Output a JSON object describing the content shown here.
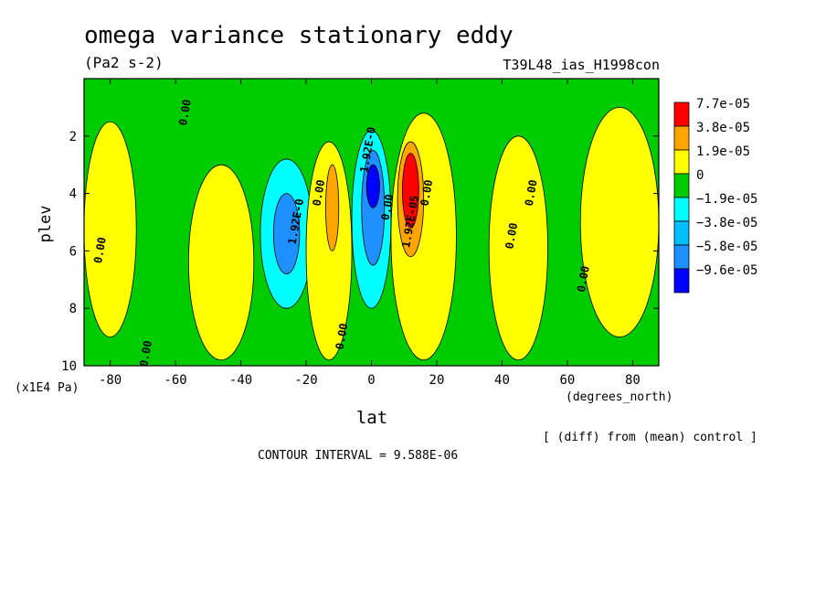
{
  "chart_data": {
    "type": "heatmap",
    "title": "omega variance stationary eddy",
    "units": "(Pa2 s-2)",
    "run_label": "T39L48_ias_H1998con",
    "xlabel": "lat",
    "xunits": "(degrees_north)",
    "ylabel": "plev",
    "yunits": "(x1E4 Pa)",
    "xlim": [
      -88,
      88
    ],
    "ylim": [
      0,
      10
    ],
    "x_ticks": [
      -80,
      -60,
      -40,
      -20,
      0,
      20,
      40,
      60,
      80
    ],
    "x_tick_labels": [
      "-80",
      "-60",
      "-40",
      "-20",
      "0",
      "20",
      "40",
      "60",
      "80"
    ],
    "y_ticks": [
      2,
      4,
      6,
      8,
      10
    ],
    "y_tick_labels": [
      "2",
      "4",
      "6",
      "8",
      "10"
    ],
    "footer_note": "[ (diff) from (mean) control ]",
    "contour_interval": "CONTOUR INTERVAL = 9.588E-06",
    "legend": [
      {
        "label": "7.7e-05",
        "color": "#ff0000"
      },
      {
        "label": "3.8e-05",
        "color": "#ffa500"
      },
      {
        "label": "1.9e-05",
        "color": "#ffff00"
      },
      {
        "label": "0",
        "color": "#00cc00"
      },
      {
        "label": "−1.9e-05",
        "color": "#00ffff"
      },
      {
        "label": "−3.8e-05",
        "color": "#00bfff"
      },
      {
        "label": "−5.8e-05",
        "color": "#1e90ff"
      },
      {
        "label": "−9.6e-05",
        "color": "#0000ff"
      }
    ],
    "colors": {
      "positive_band": "#ffff00",
      "zero_band": "#00cc00",
      "orange": "#ffa500",
      "red": "#ff0000",
      "cyan": "#00ffff",
      "light_blue": "#1e90ff",
      "blue": "#0000ff"
    },
    "regions": [
      {
        "name": "yellow-west-band",
        "color": "#ffff00",
        "lat": [
          -88,
          -72
        ],
        "plev": [
          1.5,
          9.0
        ]
      },
      {
        "name": "yellow-midwest",
        "color": "#ffff00",
        "lat": [
          -56,
          -36
        ],
        "plev": [
          3.0,
          9.8
        ]
      },
      {
        "name": "cyan-sh-low",
        "color": "#00ffff",
        "lat": [
          -34,
          -18
        ],
        "plev": [
          2.8,
          8.0
        ]
      },
      {
        "name": "blue-sh-low",
        "color": "#1e90ff",
        "lat": [
          -30,
          -22
        ],
        "plev": [
          4.0,
          6.8
        ]
      },
      {
        "name": "yellow-eq-south",
        "color": "#ffff00",
        "lat": [
          -20,
          -6
        ],
        "plev": [
          2.2,
          9.8
        ]
      },
      {
        "name": "orange-eq-south",
        "color": "#ffa500",
        "lat": [
          -14,
          -10
        ],
        "plev": [
          3.0,
          6.0
        ]
      },
      {
        "name": "cyan-eq",
        "color": "#00ffff",
        "lat": [
          -6,
          6
        ],
        "plev": [
          1.8,
          8.0
        ]
      },
      {
        "name": "blue-eq",
        "color": "#1e90ff",
        "lat": [
          -3,
          4
        ],
        "plev": [
          2.5,
          6.5
        ]
      },
      {
        "name": "darkblue-eq",
        "color": "#0000ff",
        "lat": [
          -1.5,
          2.5
        ],
        "plev": [
          3.0,
          4.5
        ]
      },
      {
        "name": "yellow-eq-north",
        "color": "#ffff00",
        "lat": [
          6,
          26
        ],
        "plev": [
          1.2,
          9.8
        ]
      },
      {
        "name": "orange-nh",
        "color": "#ffa500",
        "lat": [
          8,
          16
        ],
        "plev": [
          2.2,
          6.2
        ]
      },
      {
        "name": "red-nh",
        "color": "#ff0000",
        "lat": [
          9.5,
          14.5
        ],
        "plev": [
          2.6,
          5.2
        ]
      },
      {
        "name": "yellow-east-mid",
        "color": "#ffff00",
        "lat": [
          36,
          54
        ],
        "plev": [
          2.0,
          9.8
        ]
      },
      {
        "name": "yellow-east",
        "color": "#ffff00",
        "lat": [
          64,
          88
        ],
        "plev": [
          1.0,
          9.0
        ]
      }
    ],
    "contour_labels": [
      {
        "text": "0.00",
        "lat": -56,
        "plev": 1.2
      },
      {
        "text": "0.00",
        "lat": -82,
        "plev": 6.0
      },
      {
        "text": "0.00",
        "lat": -68,
        "plev": 9.6
      },
      {
        "text": "1.92E-0",
        "lat": -22,
        "plev": 5.0
      },
      {
        "text": "0.00",
        "lat": -15,
        "plev": 4.0
      },
      {
        "text": "0.00",
        "lat": -8,
        "plev": 9.0
      },
      {
        "text": "1.92E-0",
        "lat": 0,
        "plev": 2.5
      },
      {
        "text": "0.00",
        "lat": 6,
        "plev": 4.5
      },
      {
        "text": "1.92E-05",
        "lat": 13,
        "plev": 5.0
      },
      {
        "text": "0.00",
        "lat": 18,
        "plev": 4.0
      },
      {
        "text": "0.00",
        "lat": 44,
        "plev": 5.5
      },
      {
        "text": "0.00",
        "lat": 50,
        "plev": 4.0
      },
      {
        "text": "0.00",
        "lat": 66,
        "plev": 7.0
      }
    ]
  }
}
